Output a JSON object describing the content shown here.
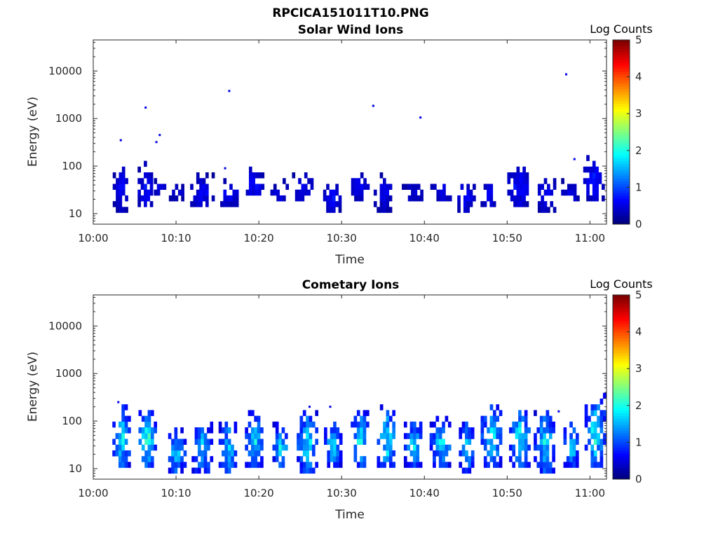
{
  "figure": {
    "title": "RPCICA151011T10.PNG"
  },
  "chart_data": [
    {
      "type": "heatmap",
      "title": "Solar Wind Ions",
      "xlabel": "Time",
      "ylabel": "Energy (eV)",
      "x_tick_labels": [
        "10:00",
        "10:10",
        "10:20",
        "10:30",
        "10:40",
        "10:50",
        "11:00"
      ],
      "x_range_minutes": [
        0,
        62
      ],
      "y_scale": "log",
      "y_ticks": [
        10,
        100,
        1000,
        10000
      ],
      "y_tick_labels": [
        "10",
        "100",
        "1000",
        "10000"
      ],
      "ylim": [
        6,
        45000
      ],
      "colorbar": {
        "label": "Log Counts",
        "ticks": [
          "0",
          "1",
          "2",
          "3",
          "4",
          "5"
        ],
        "range": [
          0,
          5
        ],
        "colormap": "jet"
      },
      "bursts": [
        {
          "t": 3.2,
          "elo": 12,
          "ehi": 100,
          "peak": 0.7
        },
        {
          "t": 6.3,
          "elo": 13,
          "ehi": 95,
          "peak": 0.8
        },
        {
          "t": 7.7,
          "elo": 25,
          "ehi": 45,
          "peak": 0.6
        },
        {
          "t": 10.0,
          "elo": 18,
          "ehi": 40,
          "peak": 0.5
        },
        {
          "t": 13.0,
          "elo": 13,
          "ehi": 60,
          "peak": 0.7
        },
        {
          "t": 16.2,
          "elo": 15,
          "ehi": 45,
          "peak": 0.7
        },
        {
          "t": 19.2,
          "elo": 22,
          "ehi": 80,
          "peak": 0.8
        },
        {
          "t": 22.5,
          "elo": 16,
          "ehi": 45,
          "peak": 0.6
        },
        {
          "t": 25.2,
          "elo": 16,
          "ehi": 70,
          "peak": 0.7
        },
        {
          "t": 28.8,
          "elo": 12,
          "ehi": 45,
          "peak": 0.8
        },
        {
          "t": 32.0,
          "elo": 20,
          "ehi": 65,
          "peak": 0.7
        },
        {
          "t": 35.0,
          "elo": 12,
          "ehi": 60,
          "peak": 0.6
        },
        {
          "t": 38.5,
          "elo": 16,
          "ehi": 45,
          "peak": 0.5
        },
        {
          "t": 42.0,
          "elo": 18,
          "ehi": 60,
          "peak": 0.7
        },
        {
          "t": 44.8,
          "elo": 12,
          "ehi": 45,
          "peak": 0.7
        },
        {
          "t": 47.7,
          "elo": 13,
          "ehi": 45,
          "peak": 0.7
        },
        {
          "t": 51.3,
          "elo": 14,
          "ehi": 100,
          "peak": 0.8
        },
        {
          "t": 54.5,
          "elo": 12,
          "ehi": 55,
          "peak": 0.7
        },
        {
          "t": 57.7,
          "elo": 18,
          "ehi": 45,
          "peak": 0.6
        },
        {
          "t": 60.3,
          "elo": 16,
          "ehi": 150,
          "peak": 0.8
        }
      ],
      "isolated_points": [
        {
          "t": 3.2,
          "e": 350
        },
        {
          "t": 6.2,
          "e": 1700
        },
        {
          "t": 7.5,
          "e": 320
        },
        {
          "t": 7.9,
          "e": 450
        },
        {
          "t": 15.8,
          "e": 90
        },
        {
          "t": 16.3,
          "e": 3800
        },
        {
          "t": 33.7,
          "e": 1850
        },
        {
          "t": 39.4,
          "e": 1050
        },
        {
          "t": 57.0,
          "e": 8500
        },
        {
          "t": 58.0,
          "e": 140
        }
      ]
    },
    {
      "type": "heatmap",
      "title": "Cometary Ions",
      "xlabel": "Time",
      "ylabel": "Energy (eV)",
      "x_tick_labels": [
        "10:00",
        "10:10",
        "10:20",
        "10:30",
        "10:40",
        "10:50",
        "11:00"
      ],
      "x_range_minutes": [
        0,
        62
      ],
      "y_scale": "log",
      "y_ticks": [
        10,
        100,
        1000,
        10000
      ],
      "y_tick_labels": [
        "10",
        "100",
        "1000",
        "10000"
      ],
      "ylim": [
        6,
        45000
      ],
      "colorbar": {
        "label": "Log Counts",
        "ticks": [
          "0",
          "1",
          "2",
          "3",
          "4",
          "5"
        ],
        "range": [
          0,
          5
        ],
        "colormap": "jet"
      },
      "bursts": [
        {
          "t": 3.3,
          "elo": 10,
          "ehi": 180,
          "peak": 2.0
        },
        {
          "t": 6.4,
          "elo": 10,
          "ehi": 150,
          "peak": 2.3
        },
        {
          "t": 9.8,
          "elo": 7,
          "ehi": 70,
          "peak": 1.7
        },
        {
          "t": 13.0,
          "elo": 7,
          "ehi": 90,
          "peak": 1.8
        },
        {
          "t": 16.2,
          "elo": 7,
          "ehi": 100,
          "peak": 1.8
        },
        {
          "t": 19.3,
          "elo": 10,
          "ehi": 150,
          "peak": 1.9
        },
        {
          "t": 22.5,
          "elo": 10,
          "ehi": 80,
          "peak": 1.9
        },
        {
          "t": 25.7,
          "elo": 7,
          "ehi": 150,
          "peak": 2.0
        },
        {
          "t": 28.8,
          "elo": 10,
          "ehi": 100,
          "peak": 1.9
        },
        {
          "t": 32.1,
          "elo": 10,
          "ehi": 150,
          "peak": 2.0
        },
        {
          "t": 35.3,
          "elo": 10,
          "ehi": 170,
          "peak": 2.1
        },
        {
          "t": 38.6,
          "elo": 10,
          "ehi": 100,
          "peak": 1.8
        },
        {
          "t": 41.9,
          "elo": 10,
          "ehi": 110,
          "peak": 1.9
        },
        {
          "t": 45.0,
          "elo": 7,
          "ehi": 100,
          "peak": 1.8
        },
        {
          "t": 48.0,
          "elo": 10,
          "ehi": 190,
          "peak": 2.0
        },
        {
          "t": 51.4,
          "elo": 10,
          "ehi": 210,
          "peak": 2.0
        },
        {
          "t": 54.4,
          "elo": 7,
          "ehi": 170,
          "peak": 1.9
        },
        {
          "t": 57.7,
          "elo": 10,
          "ehi": 90,
          "peak": 1.8
        },
        {
          "t": 60.5,
          "elo": 10,
          "ehi": 300,
          "peak": 2.1
        }
      ],
      "isolated_points": [
        {
          "t": 2.9,
          "e": 250
        },
        {
          "t": 4.2,
          "e": 120
        },
        {
          "t": 28.5,
          "e": 200
        },
        {
          "t": 26.0,
          "e": 200
        },
        {
          "t": 56.1,
          "e": 160
        }
      ]
    }
  ]
}
